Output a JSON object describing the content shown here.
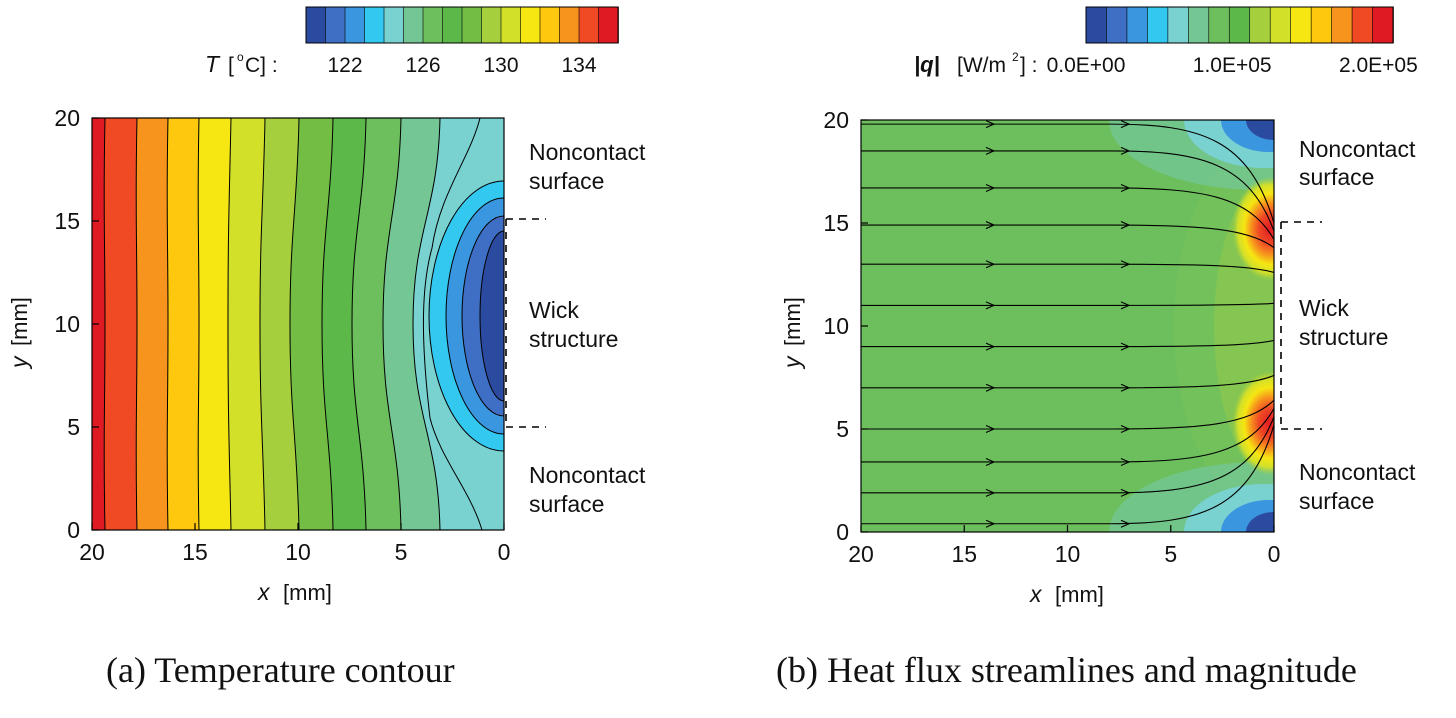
{
  "chart_data": [
    {
      "type": "heatmap",
      "panel": "a",
      "caption": "(a) Temperature contour",
      "colorbar": {
        "symbol": "T",
        "unit_label": "[°C] :",
        "unit_prefix": "[",
        "unit_sup": "o",
        "unit_suffix": "C] :",
        "tick_labels": [
          "122",
          "126",
          "130",
          "134"
        ],
        "tick_values": [
          122,
          126,
          130,
          134
        ],
        "range": [
          120,
          136
        ],
        "levels": 15,
        "colors": [
          "#2b4ba0",
          "#3f6fc4",
          "#3b96e0",
          "#33c8f0",
          "#79d1d0",
          "#74c794",
          "#6cbf5c",
          "#5cb848",
          "#73bd45",
          "#a6cf3d",
          "#d2e02a",
          "#f6e612",
          "#fdc80e",
          "#f7941d",
          "#ef4a24",
          "#e01a23"
        ]
      },
      "x": {
        "label_symbol": "x",
        "label_unit": "[mm]",
        "ticks": [
          20,
          15,
          10,
          5,
          0
        ],
        "range": [
          20,
          0
        ]
      },
      "y": {
        "label_symbol": "y",
        "label_unit": "[mm]",
        "ticks": [
          0,
          5,
          10,
          15,
          20
        ],
        "range": [
          0,
          20
        ]
      },
      "annotations": {
        "noncontact_top": [
          "Noncontact",
          "surface"
        ],
        "wick": [
          "Wick",
          "structure"
        ],
        "noncontact_bottom": [
          "Noncontact",
          "surface"
        ],
        "wick_y_range": [
          5,
          15
        ]
      }
    },
    {
      "type": "heatmap",
      "panel": "b",
      "caption": "(b) Heat flux streamlines and magnitude",
      "colorbar": {
        "symbol": "|q|",
        "unit_label": "[W/m²] :",
        "unit_prefix": "[W/m",
        "unit_sup": "2",
        "unit_suffix": "] :",
        "tick_labels": [
          "0.0E+00",
          "1.0E+05",
          "2.0E+05"
        ],
        "tick_values": [
          0,
          100000,
          200000
        ],
        "range": [
          0,
          210000
        ],
        "levels": 14,
        "colors": [
          "#2b4ba0",
          "#3f6fc4",
          "#3b96e0",
          "#33c8f0",
          "#79d1d0",
          "#74c794",
          "#6cbf5c",
          "#5cb848",
          "#a6cf3d",
          "#d2e02a",
          "#f6e612",
          "#fdc80e",
          "#f7941d",
          "#ef4a24",
          "#e01a23"
        ]
      },
      "x": {
        "label_symbol": "x",
        "label_unit": "[mm]",
        "ticks": [
          20,
          15,
          10,
          5,
          0
        ],
        "range": [
          20,
          0
        ]
      },
      "y": {
        "label_symbol": "y",
        "label_unit": "[mm]",
        "ticks": [
          0,
          5,
          10,
          15,
          20
        ],
        "range": [
          0,
          20
        ]
      },
      "streamline_start_y": [
        0.4,
        1.9,
        3.4,
        5.0,
        7.0,
        9.0,
        11.0,
        13.0,
        14.9,
        16.7,
        18.5,
        19.8
      ],
      "streamline_end_y": [
        5.2,
        5.6,
        6.0,
        6.4,
        7.6,
        9.3,
        11.1,
        12.6,
        13.8,
        14.2,
        14.6,
        15.0
      ],
      "annotations": {
        "noncontact_top": [
          "Noncontact",
          "surface"
        ],
        "wick": [
          "Wick",
          "structure"
        ],
        "noncontact_bottom": [
          "Noncontact",
          "surface"
        ],
        "wick_y_range": [
          5,
          15
        ]
      }
    }
  ]
}
